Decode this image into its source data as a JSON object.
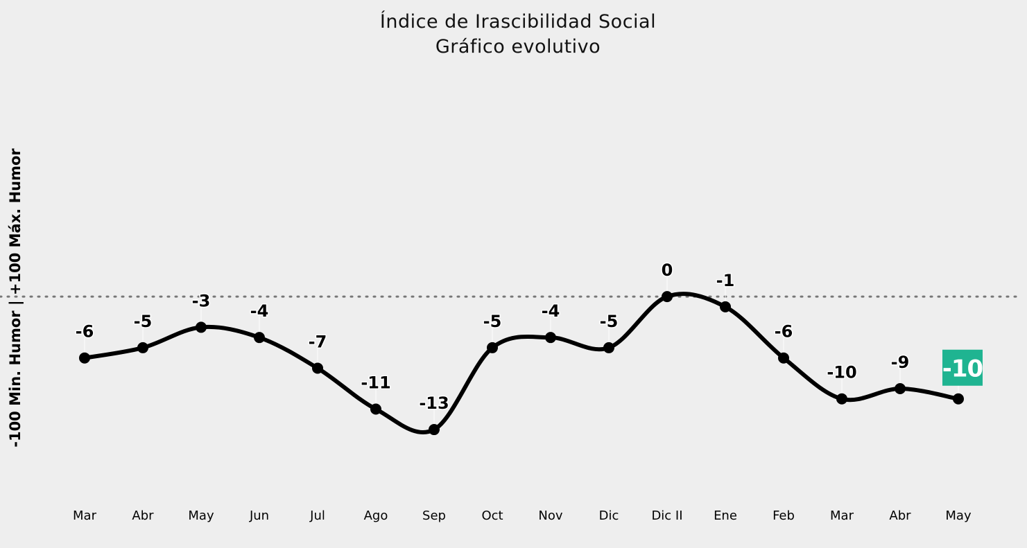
{
  "chart_data": {
    "type": "line",
    "title": "Índice de Irascibilidad Social",
    "subtitle": "Gráfico evolutivo",
    "xlabel": "",
    "ylabel": "-100 Min. Humor | +100 Máx. Humor",
    "categories": [
      "Mar",
      "Abr",
      "May",
      "Jun",
      "Jul",
      "Ago",
      "Sep",
      "Oct",
      "Nov",
      "Dic",
      "Dic II",
      "Ene",
      "Feb",
      "Mar",
      "Abr",
      "May"
    ],
    "series": [
      {
        "values": [
          -6,
          -5,
          -3,
          -4,
          -7,
          -11,
          -13,
          -5,
          -4,
          -5,
          0,
          -1,
          -6,
          -10,
          -9,
          -10
        ]
      }
    ],
    "reference_line": 0,
    "ylim": [
      -30,
      29
    ],
    "grid": false,
    "highlight_last_point": true,
    "colors": {
      "line": "#000000",
      "highlight": "#1fb491",
      "reference": "#777777"
    }
  }
}
